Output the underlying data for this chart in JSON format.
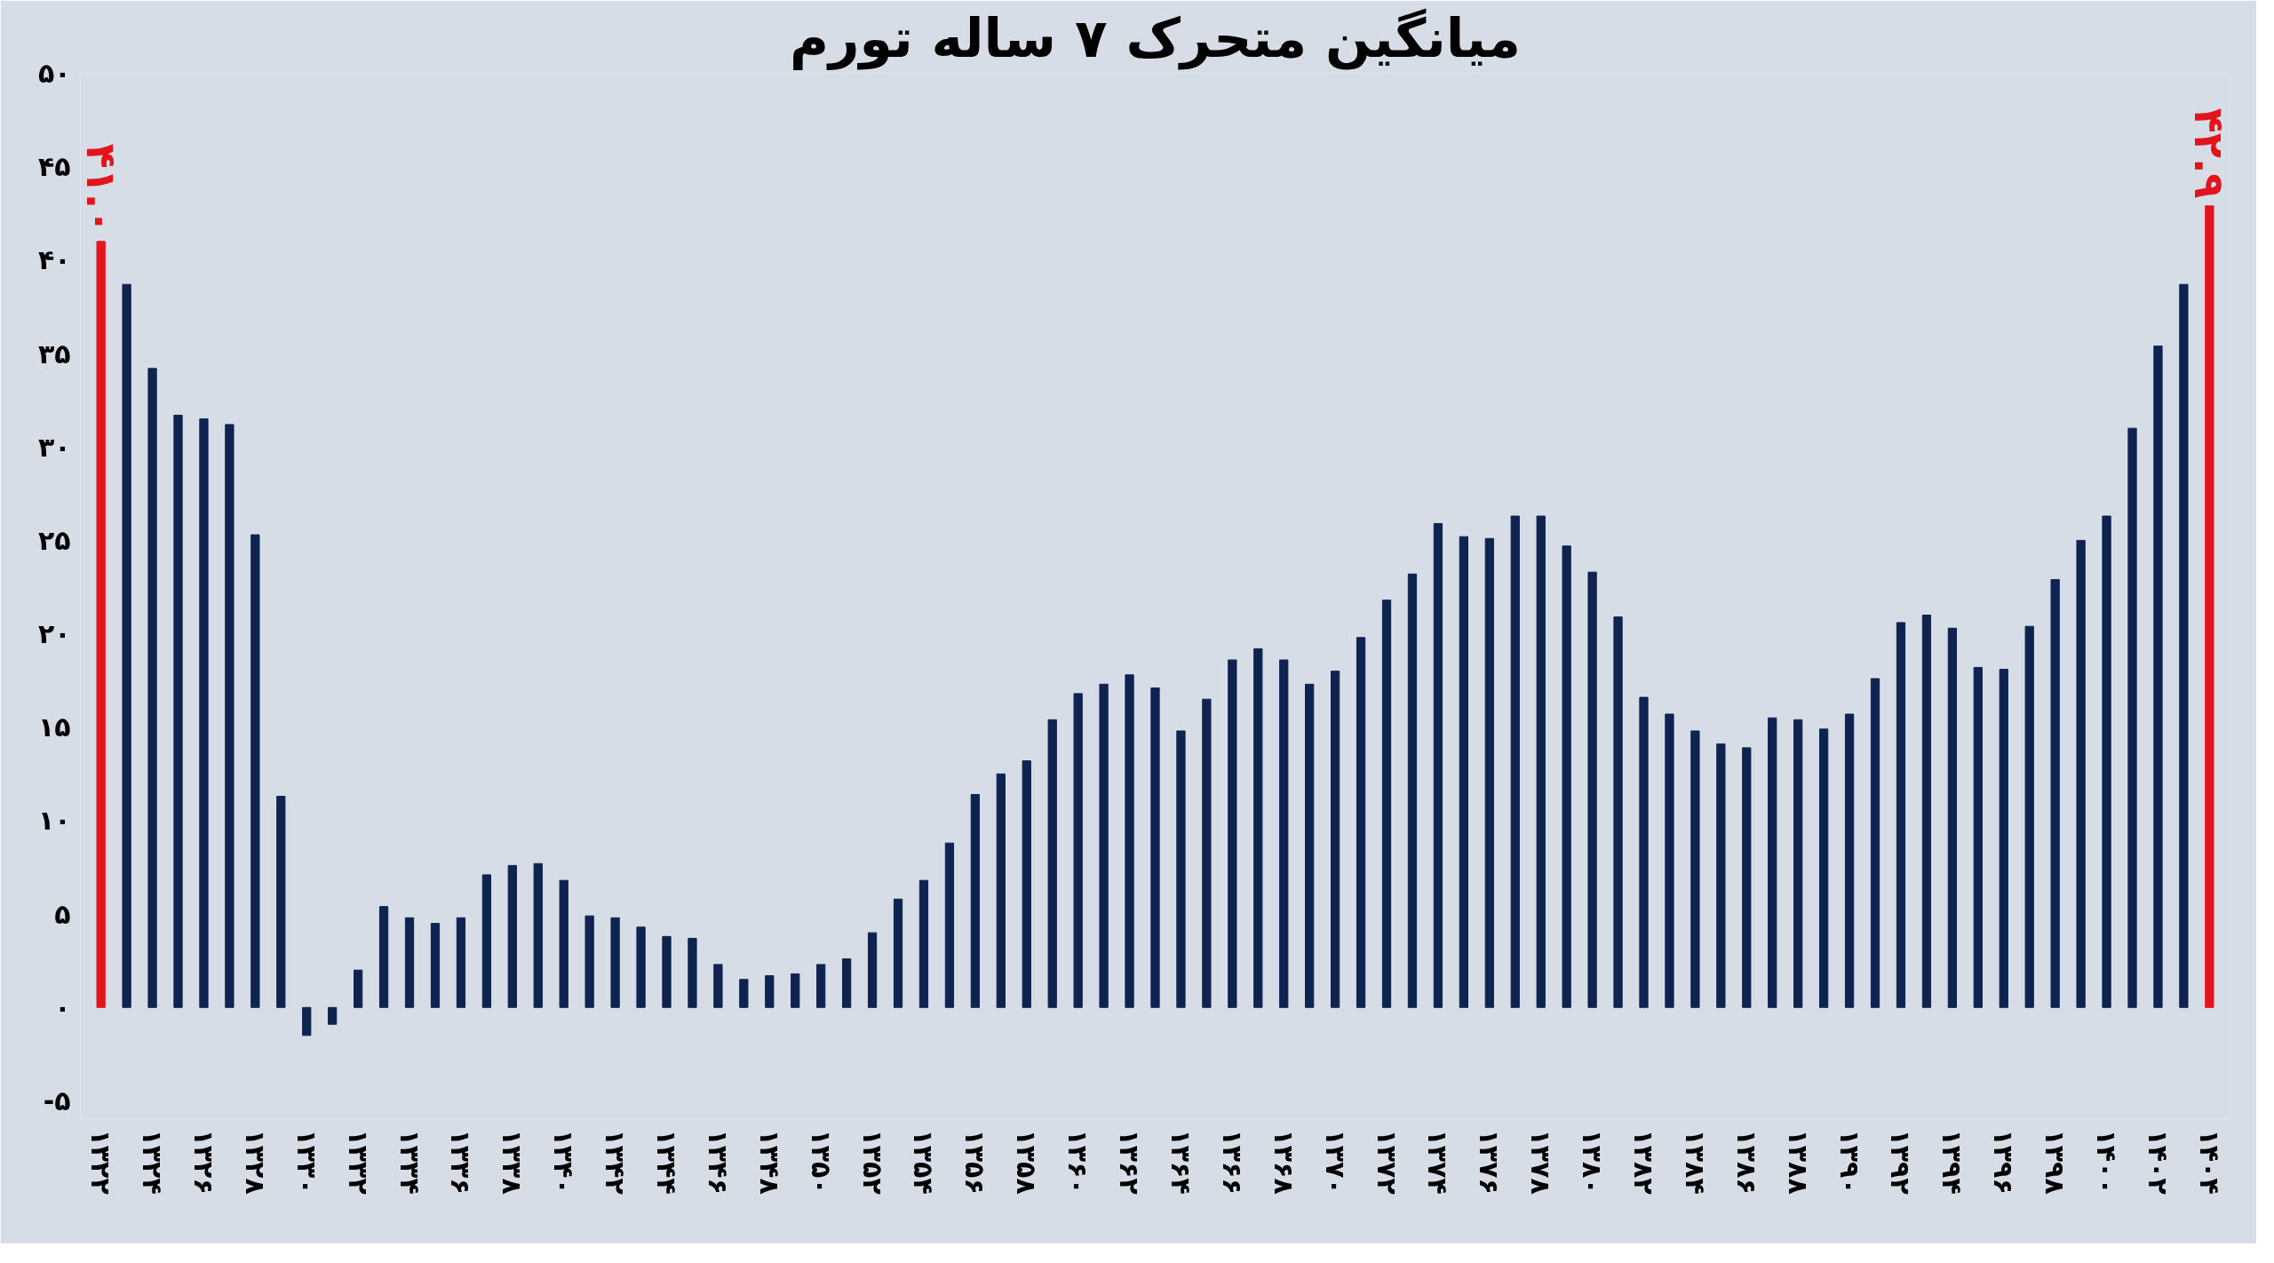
{
  "chart_data": {
    "type": "bar",
    "title": "میانگین متحرک ۷ ساله تورم",
    "categories": [
      "۱۳۲۲",
      null,
      "۱۳۲۴",
      null,
      "۱۳۲۶",
      null,
      "۱۳۲۸",
      null,
      "۱۳۳۰",
      null,
      "۱۳۳۲",
      null,
      "۱۳۳۴",
      null,
      "۱۳۳۶",
      null,
      "۱۳۳۸",
      null,
      "۱۳۴۰",
      null,
      "۱۳۴۲",
      null,
      "۱۳۴۴",
      null,
      "۱۳۴۶",
      null,
      "۱۳۴۸",
      null,
      "۱۳۵۰",
      null,
      "۱۳۵۲",
      null,
      "۱۳۵۴",
      null,
      "۱۳۵۶",
      null,
      "۱۳۵۸",
      null,
      "۱۳۶۰",
      null,
      "۱۳۶۲",
      null,
      "۱۳۶۴",
      null,
      "۱۳۶۶",
      null,
      "۱۳۶۸",
      null,
      "۱۳۷۰",
      null,
      "۱۳۷۲",
      null,
      "۱۳۷۴",
      null,
      "۱۳۷۶",
      null,
      "۱۳۷۸",
      null,
      "۱۳۸۰",
      null,
      "۱۳۸۲",
      null,
      "۱۳۸۴",
      null,
      "۱۳۸۶",
      null,
      "۱۳۸۸",
      null,
      "۱۳۹۰",
      null,
      "۱۳۹۲",
      null,
      "۱۳۹۴",
      null,
      "۱۳۹۶",
      null,
      "۱۳۹۸",
      null,
      "۱۴۰۰",
      null,
      "۱۴۰۲",
      null,
      "۱۴۰۴"
    ],
    "values": [
      41.0,
      38.7,
      34.2,
      31.7,
      31.5,
      31.2,
      25.3,
      11.3,
      -1.5,
      -0.9,
      2.0,
      5.4,
      4.8,
      4.5,
      4.8,
      7.1,
      7.6,
      7.7,
      6.8,
      4.9,
      4.8,
      4.3,
      3.8,
      3.7,
      2.3,
      1.5,
      1.7,
      1.8,
      2.3,
      2.6,
      4.0,
      5.8,
      6.8,
      8.8,
      11.4,
      12.5,
      13.2,
      15.4,
      16.8,
      17.3,
      17.8,
      17.1,
      14.8,
      16.5,
      18.6,
      19.2,
      18.6,
      17.3,
      18.0,
      19.8,
      21.8,
      23.2,
      25.9,
      25.2,
      25.1,
      26.3,
      26.3,
      24.7,
      23.3,
      20.9,
      16.6,
      15.7,
      14.8,
      14.1,
      13.9,
      15.5,
      15.4,
      14.9,
      15.7,
      17.6,
      20.6,
      21.0,
      20.3,
      18.2,
      18.1,
      20.4,
      22.9,
      25.0,
      26.3,
      31.0,
      35.4,
      38.7,
      42.9
    ],
    "colors": [
      "#e3151c",
      "#0e2350",
      "#0e2350",
      "#0e2350",
      "#0e2350",
      "#0e2350",
      "#0e2350",
      "#0e2350",
      "#0e2350",
      "#0e2350",
      "#0e2350",
      "#0e2350",
      "#0e2350",
      "#0e2350",
      "#0e2350",
      "#0e2350",
      "#0e2350",
      "#0e2350",
      "#0e2350",
      "#0e2350",
      "#0e2350",
      "#0e2350",
      "#0e2350",
      "#0e2350",
      "#0e2350",
      "#0e2350",
      "#0e2350",
      "#0e2350",
      "#0e2350",
      "#0e2350",
      "#0e2350",
      "#0e2350",
      "#0e2350",
      "#0e2350",
      "#0e2350",
      "#0e2350",
      "#0e2350",
      "#0e2350",
      "#0e2350",
      "#0e2350",
      "#0e2350",
      "#0e2350",
      "#0e2350",
      "#0e2350",
      "#0e2350",
      "#0e2350",
      "#0e2350",
      "#0e2350",
      "#0e2350",
      "#0e2350",
      "#0e2350",
      "#0e2350",
      "#0e2350",
      "#0e2350",
      "#0e2350",
      "#0e2350",
      "#0e2350",
      "#0e2350",
      "#0e2350",
      "#0e2350",
      "#0e2350",
      "#0e2350",
      "#0e2350",
      "#0e2350",
      "#0e2350",
      "#0e2350",
      "#0e2350",
      "#0e2350",
      "#0e2350",
      "#0e2350",
      "#0e2350",
      "#0e2350",
      "#0e2350",
      "#0e2350",
      "#0e2350",
      "#0e2350",
      "#0e2350",
      "#0e2350",
      "#0e2350",
      "#0e2350",
      "#0e2350",
      "#0e2350",
      "#e3151c"
    ],
    "value_labels": [
      "۴۱.۰",
      null,
      null,
      null,
      null,
      null,
      null,
      null,
      null,
      null,
      null,
      null,
      null,
      null,
      null,
      null,
      null,
      null,
      null,
      null,
      null,
      null,
      null,
      null,
      null,
      null,
      null,
      null,
      null,
      null,
      null,
      null,
      null,
      null,
      null,
      null,
      null,
      null,
      null,
      null,
      null,
      null,
      null,
      null,
      null,
      null,
      null,
      null,
      null,
      null,
      null,
      null,
      null,
      null,
      null,
      null,
      null,
      null,
      null,
      null,
      null,
      null,
      null,
      null,
      null,
      null,
      null,
      null,
      null,
      null,
      null,
      null,
      null,
      null,
      null,
      null,
      null,
      null,
      null,
      null,
      null,
      null,
      "۴۲.۹"
    ],
    "ylim": [
      -6,
      50
    ],
    "yticks": [
      {
        "value": -5,
        "label": "-۵"
      },
      {
        "value": 0,
        "label": "۰"
      },
      {
        "value": 5,
        "label": "۵"
      },
      {
        "value": 10,
        "label": "۱۰"
      },
      {
        "value": 15,
        "label": "۱۵"
      },
      {
        "value": 20,
        "label": "۲۰"
      },
      {
        "value": 25,
        "label": "۲۵"
      },
      {
        "value": 30,
        "label": "۳۰"
      },
      {
        "value": 35,
        "label": "۳۵"
      },
      {
        "value": 40,
        "label": "۴۰"
      },
      {
        "value": 45,
        "label": "۴۵"
      },
      {
        "value": 50,
        "label": "۵۰"
      }
    ],
    "grid": false
  }
}
